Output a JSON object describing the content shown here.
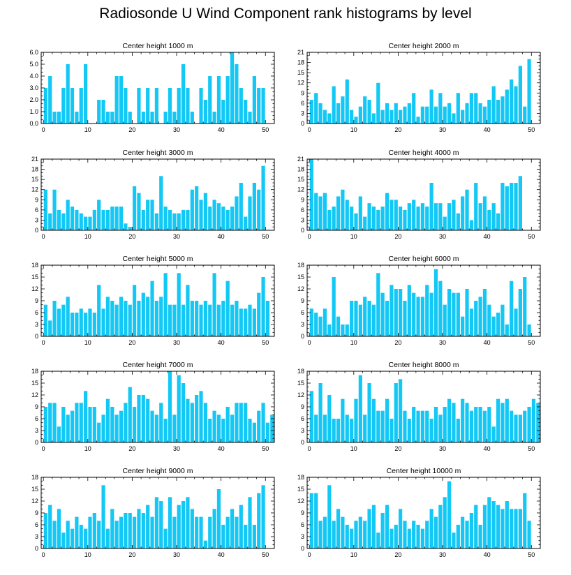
{
  "title": "Radiosonde U Wind Component rank histograms by level",
  "bar_color": "#14c8f5",
  "chart_data": [
    {
      "type": "bar",
      "title": "Center height 1000 m",
      "ylim": [
        0,
        6
      ],
      "yticks": [
        "0.0",
        "1.0",
        "2.0",
        "3.0",
        "4.0",
        "5.0",
        "6.0"
      ],
      "xticks": [
        0,
        10,
        20,
        30,
        40,
        50
      ],
      "xlim": [
        -0.5,
        52
      ],
      "values": [
        3,
        4,
        1,
        1,
        3,
        5,
        3,
        1,
        3,
        5,
        0,
        0,
        2,
        2,
        1,
        1,
        4,
        4,
        3,
        1,
        0,
        3,
        1,
        3,
        1,
        3,
        0,
        1,
        3,
        1,
        3,
        5,
        3,
        1,
        0,
        3,
        2,
        4,
        1,
        4,
        2,
        4,
        6,
        5,
        3,
        2,
        1,
        4,
        3,
        3
      ]
    },
    {
      "type": "bar",
      "title": "Center height 2000 m",
      "ylim": [
        0,
        21
      ],
      "yticks": [
        "0",
        "3",
        "6",
        "9",
        "12",
        "15",
        "18",
        "21"
      ],
      "xticks": [
        0,
        10,
        20,
        30,
        40,
        50
      ],
      "xlim": [
        -0.5,
        52
      ],
      "values": [
        7,
        9,
        6,
        4,
        3,
        11,
        6,
        8,
        13,
        4,
        2,
        5,
        8,
        7,
        3,
        12,
        4,
        6,
        4,
        6,
        4,
        5,
        6,
        9,
        2,
        5,
        5,
        10,
        5,
        9,
        5,
        6,
        3,
        9,
        4,
        6,
        9,
        9,
        6,
        5,
        7,
        11,
        7,
        8,
        10,
        13,
        11,
        17,
        5,
        19
      ]
    },
    {
      "type": "bar",
      "title": "Center height 3000 m",
      "ylim": [
        0,
        21
      ],
      "yticks": [
        "0",
        "3",
        "6",
        "9",
        "12",
        "15",
        "18",
        "21"
      ],
      "xticks": [
        0,
        10,
        20,
        30,
        40,
        50
      ],
      "xlim": [
        -0.5,
        52
      ],
      "values": [
        12,
        5,
        12,
        6,
        5,
        9,
        7,
        6,
        5,
        4,
        4,
        6,
        9,
        6,
        6,
        7,
        7,
        7,
        2,
        1,
        13,
        11,
        6,
        9,
        9,
        5,
        16,
        7,
        6,
        5,
        5,
        6,
        6,
        12,
        13,
        9,
        11,
        7,
        9,
        8,
        7,
        6,
        7,
        10,
        14,
        4,
        10,
        14,
        12,
        19
      ]
    },
    {
      "type": "bar",
      "title": "Center height 4000 m",
      "ylim": [
        0,
        21
      ],
      "yticks": [
        "0",
        "3",
        "6",
        "9",
        "12",
        "15",
        "18",
        "21"
      ],
      "xticks": [
        0,
        10,
        20,
        30,
        40,
        50
      ],
      "xlim": [
        -0.5,
        52
      ],
      "values": [
        21,
        11,
        10,
        11,
        6,
        7,
        10,
        12,
        9,
        7,
        5,
        10,
        4,
        8,
        7,
        6,
        7,
        11,
        9,
        9,
        7,
        6,
        8,
        9,
        7,
        8,
        7,
        14,
        8,
        8,
        4,
        8,
        9,
        5,
        10,
        12,
        3,
        14,
        8,
        10,
        6,
        8,
        5,
        14,
        13,
        14,
        14,
        16
      ]
    },
    {
      "type": "bar",
      "title": "Center height 5000 m",
      "ylim": [
        0,
        18
      ],
      "yticks": [
        "0",
        "3",
        "6",
        "9",
        "12",
        "15",
        "18"
      ],
      "xticks": [
        0,
        10,
        20,
        30,
        40,
        50
      ],
      "xlim": [
        -0.5,
        52
      ],
      "values": [
        8,
        4,
        9,
        7,
        8,
        10,
        6,
        6,
        7,
        6,
        7,
        6,
        13,
        7,
        10,
        9,
        8,
        10,
        9,
        8,
        13,
        9,
        11,
        10,
        14,
        9,
        10,
        16,
        8,
        8,
        16,
        8,
        13,
        9,
        9,
        8,
        9,
        8,
        16,
        8,
        9,
        14,
        8,
        9,
        7,
        7,
        8,
        7,
        11,
        15,
        9
      ]
    },
    {
      "type": "bar",
      "title": "Center height 6000 m",
      "ylim": [
        0,
        18
      ],
      "yticks": [
        "0",
        "3",
        "6",
        "9",
        "12",
        "15",
        "18"
      ],
      "xticks": [
        0,
        10,
        20,
        30,
        40,
        50
      ],
      "xlim": [
        -0.5,
        52
      ],
      "values": [
        7,
        6,
        5,
        7,
        3,
        15,
        5,
        3,
        3,
        9,
        9,
        8,
        10,
        9,
        8,
        16,
        11,
        9,
        13,
        12,
        12,
        9,
        13,
        11,
        10,
        10,
        13,
        11,
        17,
        14,
        8,
        12,
        11,
        11,
        5,
        12,
        7,
        9,
        10,
        12,
        8,
        5,
        6,
        8,
        3,
        14,
        7,
        12,
        15,
        3
      ]
    },
    {
      "type": "bar",
      "title": "Center height 7000 m",
      "ylim": [
        0,
        18
      ],
      "yticks": [
        "0",
        "3",
        "6",
        "9",
        "12",
        "15",
        "18"
      ],
      "xticks": [
        0,
        10,
        20,
        30,
        40,
        50
      ],
      "xlim": [
        -0.5,
        52
      ],
      "values": [
        9,
        10,
        10,
        4,
        9,
        7,
        8,
        10,
        10,
        13,
        9,
        9,
        5,
        7,
        11,
        9,
        7,
        8,
        10,
        14,
        9,
        12,
        12,
        11,
        8,
        7,
        10,
        6,
        18,
        7,
        17,
        15,
        11,
        10,
        12,
        13,
        10,
        6,
        8,
        7,
        6,
        9,
        7,
        10,
        10,
        10,
        6,
        5,
        8,
        10,
        5,
        7
      ]
    },
    {
      "type": "bar",
      "title": "Center height 8000 m",
      "ylim": [
        0,
        18
      ],
      "yticks": [
        "0",
        "3",
        "6",
        "9",
        "12",
        "15",
        "18"
      ],
      "xticks": [
        0,
        10,
        20,
        30,
        40,
        50
      ],
      "xlim": [
        -0.5,
        52
      ],
      "values": [
        13,
        7,
        15,
        7,
        12,
        6,
        6,
        11,
        7,
        6,
        11,
        17,
        7,
        15,
        11,
        8,
        8,
        11,
        6,
        15,
        16,
        8,
        6,
        9,
        8,
        8,
        8,
        6,
        9,
        7,
        9,
        11,
        10,
        6,
        11,
        10,
        8,
        9,
        9,
        8,
        9,
        4,
        11,
        10,
        11,
        8,
        7,
        7,
        8,
        9,
        11,
        10
      ]
    },
    {
      "type": "bar",
      "title": "Center height 9000 m",
      "ylim": [
        0,
        18
      ],
      "yticks": [
        "0",
        "3",
        "6",
        "9",
        "12",
        "15",
        "18"
      ],
      "xticks": [
        0,
        10,
        20,
        30,
        40,
        50
      ],
      "xlim": [
        -0.5,
        52
      ],
      "values": [
        9,
        11,
        7,
        10,
        4,
        7,
        5,
        8,
        6,
        5,
        8,
        9,
        7,
        16,
        5,
        10,
        7,
        8,
        9,
        9,
        8,
        10,
        9,
        11,
        8,
        13,
        12,
        5,
        13,
        8,
        11,
        12,
        13,
        10,
        8,
        8,
        2,
        8,
        10,
        15,
        6,
        8,
        10,
        8,
        11,
        6,
        13,
        6,
        14,
        16
      ]
    },
    {
      "type": "bar",
      "title": "Center height 10000 m",
      "ylim": [
        0,
        18
      ],
      "yticks": [
        "0",
        "3",
        "6",
        "9",
        "12",
        "15",
        "18"
      ],
      "xticks": [
        0,
        10,
        20,
        30,
        40,
        50
      ],
      "xlim": [
        -0.5,
        52
      ],
      "values": [
        14,
        14,
        7,
        8,
        16,
        7,
        10,
        8,
        6,
        5,
        7,
        8,
        7,
        10,
        11,
        4,
        9,
        11,
        5,
        6,
        10,
        7,
        5,
        7,
        6,
        5,
        7,
        10,
        8,
        11,
        13,
        17,
        4,
        6,
        8,
        7,
        9,
        11,
        6,
        11,
        13,
        12,
        11,
        10,
        12,
        10,
        10,
        10,
        14,
        7
      ]
    }
  ]
}
